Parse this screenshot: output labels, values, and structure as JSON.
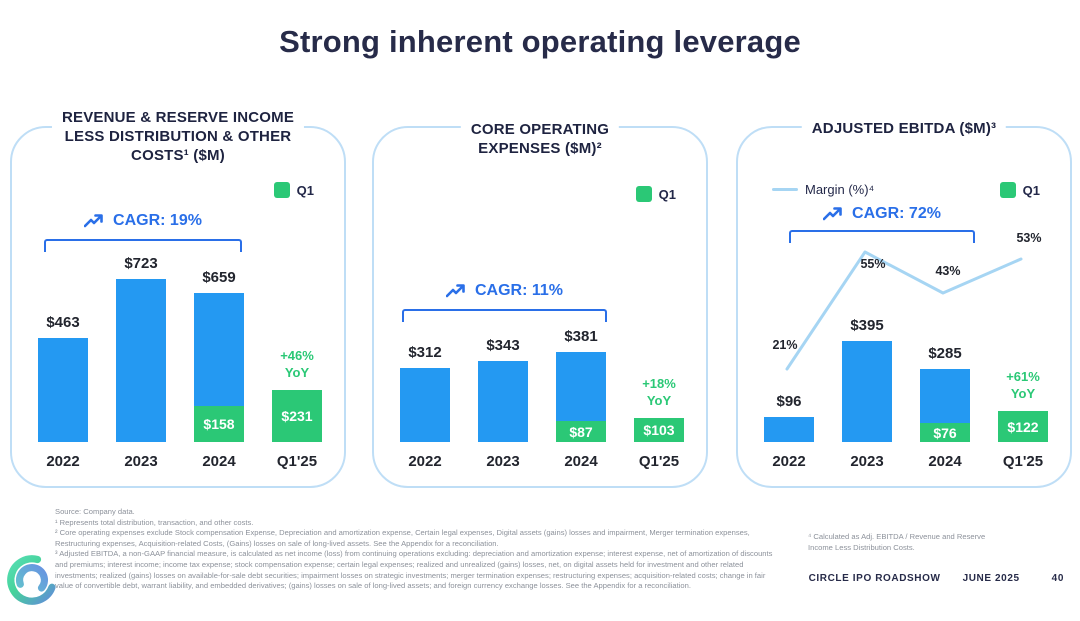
{
  "slide": {
    "title": "Strong inherent operating leverage",
    "footer": {
      "brand": "CIRCLE IPO ROADSHOW",
      "date": "JUNE 2025",
      "page": "40"
    },
    "logo": "circle-logo"
  },
  "colors": {
    "navy": "#272b49",
    "blue_bar": "#2499f2",
    "green": "#2bc876",
    "cagr_blue": "#2a6fe8",
    "panel_border": "#bfdef6",
    "margin_line": "#a6d5f3",
    "footnote_gray": "#8d929b"
  },
  "footnotes": {
    "source": "Source: Company data.",
    "note1": "¹ Represents total distribution, transaction, and other costs.",
    "note2": "² Core operating expenses exclude Stock compensation Expense, Depreciation and amortization expense, Certain legal expenses, Digital assets (gains) losses and impairment, Merger termination expenses, Restructuring expenses, Acquisition-related Costs, (Gains) losses on sale of long-lived assets. See the Appendix for a reconciliation.",
    "note3": "³ Adjusted EBITDA, a non-GAAP financial measure, is calculated as net income (loss) from continuing operations excluding: depreciation and amortization expense; interest expense, net of amortization of discounts and premiums; interest income; income tax expense; stock compensation expense; certain legal expenses; realized and unrealized (gains) losses, net, on digital assets held for investment and other related investments; realized (gains) losses on available-for-sale debt securities; impairment losses on strategic investments; merger termination expenses; restructuring expenses; acquisition-related costs; change in fair value of convertible debt, warrant liability, and embedded derivatives; (gains) losses on sale of long-lived assets; and foreign currency exchange losses. See the Appendix for a reconciliation.",
    "note4": "⁴ Calculated as Adj. EBITDA / Revenue and Reserve Income Less Distribution Costs."
  },
  "chart_data": [
    {
      "type": "bar",
      "title": "REVENUE & RESERVE INCOME LESS DISTRIBUTION & OTHER COSTS¹ ($M)",
      "title_lines": [
        "REVENUE & RESERVE INCOME",
        "LESS DISTRIBUTION & OTHER",
        "COSTS¹ ($M)"
      ],
      "legend": [
        "Q1"
      ],
      "cagr_label": "CAGR: 19%",
      "categories": [
        "2022",
        "2023",
        "2024",
        "Q1'25"
      ],
      "values": [
        463,
        723,
        659,
        231
      ],
      "value_labels": [
        "$463",
        "$723",
        "$659",
        "$231"
      ],
      "q1_segment": {
        "category": "2024",
        "value": 158,
        "label": "$158"
      },
      "q1_bar": {
        "category": "Q1'25",
        "label": "$231",
        "yoy": "+46%\nYoY"
      },
      "ylim": [
        0,
        723
      ],
      "legend_position": "top-right",
      "grid": false
    },
    {
      "type": "bar",
      "title": "CORE OPERATING EXPENSES ($M)²",
      "title_lines": [
        "CORE OPERATING",
        "EXPENSES ($M)²"
      ],
      "legend": [
        "Q1"
      ],
      "cagr_label": "CAGR: 11%",
      "categories": [
        "2022",
        "2023",
        "2024",
        "Q1'25"
      ],
      "values": [
        312,
        343,
        381,
        103
      ],
      "value_labels": [
        "$312",
        "$343",
        "$381",
        "$103"
      ],
      "q1_segment": {
        "category": "2024",
        "value": 87,
        "label": "$87"
      },
      "q1_bar": {
        "category": "Q1'25",
        "label": "$103",
        "yoy": "+18%\nYoY"
      },
      "ylim": [
        0,
        381
      ],
      "legend_position": "top-right",
      "grid": false
    },
    {
      "type": "bar",
      "title": "ADJUSTED EBITDA ($M)³",
      "title_lines": [
        "ADJUSTED EBITDA ($M)³"
      ],
      "legend": [
        "Q1"
      ],
      "cagr_label": "CAGR: 72%",
      "categories": [
        "2022",
        "2023",
        "2024",
        "Q1'25"
      ],
      "values": [
        96,
        395,
        285,
        122
      ],
      "value_labels": [
        "$96",
        "$395",
        "$285",
        "$122"
      ],
      "q1_segment": {
        "category": "2024",
        "value": 76,
        "label": "$76"
      },
      "q1_bar": {
        "category": "Q1'25",
        "label": "$122",
        "yoy": "+61%\nYoY"
      },
      "margin_series": {
        "name": "Margin (%)⁴",
        "values": [
          21,
          55,
          43,
          53
        ],
        "labels": [
          "21%",
          "55%",
          "43%",
          "53%"
        ]
      },
      "ylim": [
        0,
        395
      ],
      "legend_position": "top-right",
      "grid": false
    }
  ]
}
